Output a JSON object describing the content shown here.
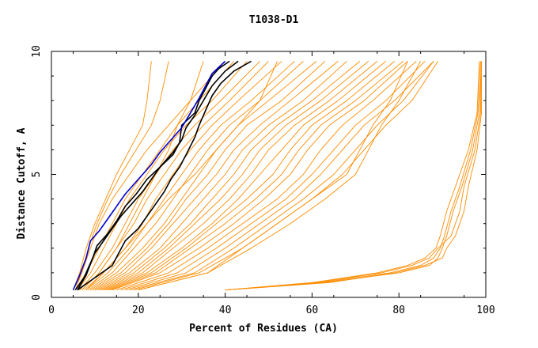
{
  "chart_data": {
    "type": "line",
    "title": "T1038-D1",
    "xlabel": "Percent of Residues (CA)",
    "ylabel": "Distance Cutoff, A",
    "xlim": [
      0,
      100
    ],
    "ylim": [
      0,
      10
    ],
    "xticks": [
      "0",
      "20",
      "40",
      "60",
      "80",
      "100"
    ],
    "yticks": [
      "0",
      "5",
      "10"
    ],
    "grid": false,
    "colors": {
      "models": "#ff8c00",
      "highlight_black": "#000000",
      "highlight_blue": "#0000cc"
    },
    "series": [
      {
        "color": "#ff8c00",
        "x": [
          5.0,
          7.0,
          9.0,
          11.0,
          14.0,
          18.0,
          22.0,
          27.0,
          32.0,
          40.0
        ],
        "y": [
          0.3,
          1.0,
          2.0,
          3.0,
          4.0,
          5.0,
          6.0,
          7.0,
          8.0,
          9.6
        ]
      },
      {
        "color": "#ff8c00",
        "x": [
          5.5,
          8.0,
          11.0,
          14.0,
          17.0,
          21.0,
          25.0,
          29.0,
          34.0,
          42.0
        ],
        "y": [
          0.3,
          1.0,
          2.0,
          3.0,
          4.0,
          5.0,
          6.0,
          7.0,
          8.0,
          9.6
        ]
      },
      {
        "color": "#ff8c00",
        "x": [
          6.0,
          9.0,
          12.0,
          15.0,
          18.0,
          22.0,
          26.0,
          31.0,
          37.0,
          45.0
        ],
        "y": [
          0.3,
          1.0,
          2.0,
          3.0,
          4.0,
          5.0,
          6.0,
          7.0,
          8.0,
          9.6
        ]
      },
      {
        "color": "#ff8c00",
        "x": [
          6.5,
          10.0,
          14.0,
          17.0,
          20.0,
          24.0,
          28.0,
          33.0,
          39.0,
          48.0
        ],
        "y": [
          0.3,
          1.0,
          2.0,
          3.0,
          4.0,
          5.0,
          6.0,
          7.0,
          8.0,
          9.6
        ]
      },
      {
        "color": "#ff8c00",
        "x": [
          7.0,
          11.0,
          15.0,
          19.0,
          22.0,
          26.0,
          30.0,
          35.0,
          41.0,
          50.0
        ],
        "y": [
          0.3,
          1.0,
          2.0,
          3.0,
          4.0,
          5.0,
          6.0,
          7.0,
          8.0,
          9.6
        ]
      },
      {
        "color": "#ff8c00",
        "x": [
          7.5,
          12.0,
          17.0,
          21.0,
          24.0,
          28.0,
          32.0,
          37.0,
          43.0,
          53.0
        ],
        "y": [
          0.3,
          1.0,
          2.0,
          3.0,
          4.0,
          5.0,
          6.0,
          7.0,
          8.0,
          9.6
        ]
      },
      {
        "color": "#ff8c00",
        "x": [
          8.0,
          13.0,
          18.0,
          22.0,
          26.0,
          30.0,
          34.0,
          39.0,
          46.0,
          56.0
        ],
        "y": [
          0.3,
          1.0,
          2.0,
          3.0,
          4.0,
          5.0,
          6.0,
          7.0,
          8.0,
          9.6
        ]
      },
      {
        "color": "#ff8c00",
        "x": [
          8.5,
          14.0,
          19.0,
          24.0,
          28.0,
          32.0,
          36.0,
          41.0,
          48.0,
          58.0
        ],
        "y": [
          0.3,
          1.0,
          2.0,
          3.0,
          4.0,
          5.0,
          6.0,
          7.0,
          8.0,
          9.6
        ]
      },
      {
        "color": "#ff8c00",
        "x": [
          9.0,
          15.0,
          21.0,
          26.0,
          30.0,
          34.0,
          38.0,
          43.0,
          50.0,
          61.0
        ],
        "y": [
          0.3,
          1.0,
          2.0,
          3.0,
          4.0,
          5.0,
          6.0,
          7.0,
          8.0,
          9.6
        ]
      },
      {
        "color": "#ff8c00",
        "x": [
          9.5,
          16.0,
          22.0,
          27.0,
          31.0,
          36.0,
          40.0,
          45.0,
          53.0,
          63.0
        ],
        "y": [
          0.3,
          1.0,
          2.0,
          3.0,
          4.0,
          5.0,
          6.0,
          7.0,
          8.0,
          9.6
        ]
      },
      {
        "color": "#ff8c00",
        "x": [
          10.0,
          17.0,
          23.0,
          28.0,
          33.0,
          38.0,
          42.0,
          48.0,
          55.0,
          66.0
        ],
        "y": [
          0.3,
          1.0,
          2.0,
          3.0,
          4.0,
          5.0,
          6.0,
          7.0,
          8.0,
          9.6
        ]
      },
      {
        "color": "#ff8c00",
        "x": [
          10.5,
          18.0,
          25.0,
          30.0,
          35.0,
          40.0,
          44.0,
          50.0,
          58.0,
          68.0
        ],
        "y": [
          0.3,
          1.0,
          2.0,
          3.0,
          4.0,
          5.0,
          6.0,
          7.0,
          8.0,
          9.6
        ]
      },
      {
        "color": "#ff8c00",
        "x": [
          11.0,
          19.0,
          26.0,
          32.0,
          37.0,
          42.0,
          46.0,
          52.0,
          60.0,
          71.0
        ],
        "y": [
          0.3,
          1.0,
          2.0,
          3.0,
          4.0,
          5.0,
          6.0,
          7.0,
          8.0,
          9.6
        ]
      },
      {
        "color": "#ff8c00",
        "x": [
          11.5,
          20.0,
          27.0,
          33.0,
          39.0,
          44.0,
          48.0,
          54.0,
          62.0,
          73.0
        ],
        "y": [
          0.3,
          1.0,
          2.0,
          3.0,
          4.0,
          5.0,
          6.0,
          7.0,
          8.0,
          9.6
        ]
      },
      {
        "color": "#ff8c00",
        "x": [
          12.0,
          21.0,
          28.0,
          35.0,
          41.0,
          46.0,
          50.0,
          56.0,
          64.0,
          75.0
        ],
        "y": [
          0.3,
          1.0,
          2.0,
          3.0,
          4.0,
          5.0,
          6.0,
          7.0,
          8.0,
          9.6
        ]
      },
      {
        "color": "#ff8c00",
        "x": [
          12.5,
          22.0,
          30.0,
          37.0,
          43.0,
          48.0,
          53.0,
          58.0,
          66.0,
          77.0
        ],
        "y": [
          0.3,
          1.0,
          2.0,
          3.0,
          4.0,
          5.0,
          6.0,
          7.0,
          8.0,
          9.6
        ]
      },
      {
        "color": "#ff8c00",
        "x": [
          13.0,
          23.0,
          31.0,
          38.0,
          45.0,
          51.0,
          55.0,
          60.0,
          68.0,
          79.0
        ],
        "y": [
          0.3,
          1.0,
          2.0,
          3.0,
          4.0,
          5.0,
          6.0,
          7.0,
          8.0,
          9.6
        ]
      },
      {
        "color": "#ff8c00",
        "x": [
          13.5,
          24.0,
          32.0,
          40.0,
          47.0,
          53.0,
          57.0,
          62.0,
          70.0,
          81.0
        ],
        "y": [
          0.3,
          1.0,
          2.0,
          3.0,
          4.0,
          5.0,
          6.0,
          7.0,
          8.0,
          9.6
        ]
      },
      {
        "color": "#ff8c00",
        "x": [
          14.0,
          25.0,
          34.0,
          42.0,
          49.0,
          55.0,
          59.0,
          64.0,
          72.0,
          82.0
        ],
        "y": [
          0.3,
          1.0,
          2.0,
          3.0,
          4.0,
          5.0,
          6.0,
          7.0,
          8.0,
          9.6
        ]
      },
      {
        "color": "#ff8c00",
        "x": [
          15.0,
          27.0,
          36.0,
          44.0,
          52.0,
          58.0,
          62.0,
          67.0,
          74.0,
          84.0
        ],
        "y": [
          0.3,
          1.0,
          2.0,
          3.0,
          4.0,
          5.0,
          6.0,
          7.0,
          8.0,
          9.6
        ]
      },
      {
        "color": "#ff8c00",
        "x": [
          16.0,
          29.0,
          38.0,
          46.0,
          54.0,
          60.0,
          65.0,
          70.0,
          77.0,
          86.0
        ],
        "y": [
          0.3,
          1.0,
          2.0,
          3.0,
          4.0,
          5.0,
          6.0,
          7.0,
          8.0,
          9.6
        ]
      },
      {
        "color": "#ff8c00",
        "x": [
          17.0,
          31.0,
          40.0,
          48.0,
          56.0,
          62.0,
          67.0,
          72.0,
          79.0,
          88.0
        ],
        "y": [
          0.3,
          1.0,
          2.0,
          3.0,
          4.0,
          5.0,
          6.0,
          7.0,
          8.0,
          9.6
        ]
      },
      {
        "color": "#ff8c00",
        "x": [
          18.0,
          33.0,
          42.0,
          50.0,
          58.0,
          65.0,
          70.0,
          75.0,
          81.0,
          88.0
        ],
        "y": [
          0.3,
          1.0,
          2.0,
          3.0,
          4.0,
          5.0,
          6.0,
          7.0,
          8.0,
          9.6
        ]
      },
      {
        "color": "#ff8c00",
        "x": [
          19.0,
          34.0,
          44.0,
          52.0,
          60.0,
          67.0,
          72.0,
          77.0,
          83.0,
          89.0
        ],
        "y": [
          0.3,
          1.0,
          2.0,
          3.0,
          4.0,
          5.0,
          6.0,
          7.0,
          8.0,
          9.6
        ]
      },
      {
        "color": "#ff8c00",
        "x": [
          5.0,
          6.5,
          8.0,
          10.0,
          12.5,
          15.0,
          18.0,
          21.0,
          22.0,
          23.0
        ],
        "y": [
          0.3,
          1.0,
          2.0,
          3.0,
          4.0,
          5.0,
          6.0,
          7.0,
          8.0,
          9.6
        ]
      },
      {
        "color": "#ff8c00",
        "x": [
          5.5,
          7.0,
          8.5,
          10.5,
          13.0,
          16.0,
          19.5,
          23.0,
          25.0,
          27.0
        ],
        "y": [
          0.3,
          1.0,
          2.0,
          3.0,
          4.0,
          5.0,
          6.0,
          7.0,
          8.0,
          9.6
        ]
      },
      {
        "color": "#ff8c00",
        "x": [
          7.0,
          11.0,
          15.0,
          18.0,
          21.0,
          24.0,
          27.0,
          29.0,
          32.0,
          35.0
        ],
        "y": [
          0.3,
          1.0,
          2.0,
          3.0,
          4.0,
          5.0,
          6.0,
          7.0,
          8.0,
          9.6
        ]
      },
      {
        "color": "#ff8c00",
        "x": [
          8.0,
          12.0,
          17.0,
          22.0,
          27.0,
          33.0,
          38.0,
          43.0,
          48.0,
          52.0
        ],
        "y": [
          0.3,
          1.0,
          2.0,
          3.0,
          4.0,
          5.0,
          6.0,
          7.0,
          8.0,
          9.6
        ]
      },
      {
        "color": "#ff8c00",
        "x": [
          20.0,
          36.0,
          46.0,
          55.0,
          63.0,
          70.0,
          73.0,
          76.0,
          80.0,
          85.0
        ],
        "y": [
          0.3,
          1.0,
          2.0,
          3.0,
          4.0,
          5.0,
          6.0,
          7.0,
          8.0,
          9.6
        ]
      },
      {
        "color": "#ff8c00",
        "x": [
          20.0,
          36.0,
          44.0,
          52.0,
          60.0,
          68.0,
          71.0,
          74.0,
          78.0,
          82.0
        ],
        "y": [
          0.3,
          1.0,
          2.0,
          3.0,
          4.0,
          5.0,
          6.0,
          7.0,
          8.0,
          9.6
        ]
      },
      {
        "color": "#ff8c00",
        "x": [
          40.0,
          60.0,
          75.0,
          82.0,
          86.0,
          88.5,
          89.5,
          91.0,
          93.0,
          96.0,
          98.0,
          98.5
        ],
        "y": [
          0.3,
          0.6,
          1.0,
          1.3,
          1.6,
          2.0,
          2.5,
          3.5,
          4.5,
          6.0,
          7.5,
          9.6
        ]
      },
      {
        "color": "#ff8c00",
        "x": [
          40.0,
          62.0,
          78.0,
          85.0,
          88.0,
          89.5,
          90.5,
          92.0,
          94.0,
          96.5,
          98.2,
          98.8
        ],
        "y": [
          0.3,
          0.6,
          1.0,
          1.3,
          1.6,
          2.0,
          2.5,
          3.5,
          4.5,
          6.0,
          7.5,
          9.6
        ]
      },
      {
        "color": "#ff8c00",
        "x": [
          40.0,
          63.0,
          80.0,
          87.0,
          89.0,
          90.0,
          91.0,
          92.5,
          94.5,
          97.0,
          98.5,
          99.0
        ],
        "y": [
          0.3,
          0.6,
          1.0,
          1.3,
          1.6,
          2.0,
          2.5,
          3.5,
          4.5,
          6.0,
          7.5,
          9.6
        ]
      },
      {
        "color": "#ff8c00",
        "x": [
          40.0,
          61.0,
          76.0,
          83.0,
          87.0,
          89.0,
          92.0,
          94.0,
          95.0,
          97.5,
          98.8,
          99.0
        ],
        "y": [
          0.3,
          0.6,
          1.0,
          1.3,
          1.6,
          2.0,
          2.5,
          3.5,
          4.5,
          6.0,
          7.5,
          9.6
        ]
      },
      {
        "color": "#ff8c00",
        "x": [
          40.0,
          64.0,
          79.0,
          86.0,
          90.0,
          91.0,
          93.0,
          95.0,
          96.0,
          98.0,
          99.0,
          99.0
        ],
        "y": [
          0.3,
          0.6,
          1.0,
          1.3,
          1.6,
          2.0,
          2.5,
          3.5,
          4.5,
          6.0,
          7.5,
          9.6
        ]
      },
      {
        "color": "#000000",
        "x": [
          5.5,
          7.5,
          9.0,
          10.0,
          12.0,
          14.0,
          16.0,
          19.0,
          21.0,
          23.0,
          25.0,
          28.0,
          30.0,
          31.0,
          33.0,
          35.0,
          37.0,
          40.0,
          43.0
        ],
        "y": [
          0.3,
          0.8,
          1.4,
          1.8,
          2.3,
          2.8,
          3.3,
          3.9,
          4.3,
          4.8,
          5.3,
          5.9,
          6.4,
          6.9,
          7.4,
          8.0,
          8.6,
          9.2,
          9.6
        ]
      },
      {
        "color": "#000000",
        "x": [
          6.0,
          10.0,
          14.0,
          15.5,
          17.0,
          20.0,
          22.0,
          24.0,
          26.0,
          27.5,
          29.5,
          31.0,
          33.0,
          34.0,
          35.5,
          37.0,
          39.0,
          42.0,
          46.0
        ],
        "y": [
          0.3,
          0.8,
          1.3,
          1.8,
          2.3,
          2.8,
          3.3,
          3.8,
          4.3,
          4.8,
          5.3,
          5.8,
          6.5,
          7.0,
          7.6,
          8.2,
          8.7,
          9.2,
          9.6
        ]
      },
      {
        "color": "#000000",
        "x": [
          6.0,
          8.0,
          9.5,
          10.5,
          13.0,
          15.0,
          17.0,
          19.5,
          22.0,
          25.0,
          28.0,
          29.5,
          30.0,
          33.0,
          34.0,
          35.5,
          37.0,
          38.5,
          41.0
        ],
        "y": [
          0.3,
          0.9,
          1.6,
          2.1,
          2.6,
          3.1,
          3.7,
          4.2,
          4.8,
          5.3,
          5.8,
          6.3,
          7.0,
          7.5,
          8.0,
          8.5,
          9.0,
          9.3,
          9.6
        ]
      },
      {
        "color": "#0000cc",
        "x": [
          5.0,
          6.5,
          8.0,
          9.0,
          11.0,
          13.0,
          15.0,
          17.0,
          19.0,
          21.0,
          23.0,
          25.0,
          27.5,
          30.0,
          32.0,
          34.0,
          35.5,
          37.0,
          40.0
        ],
        "y": [
          0.3,
          0.9,
          1.6,
          2.3,
          2.7,
          3.2,
          3.7,
          4.2,
          4.6,
          5.0,
          5.4,
          5.9,
          6.4,
          6.9,
          7.5,
          8.1,
          8.6,
          9.1,
          9.6
        ]
      }
    ]
  }
}
